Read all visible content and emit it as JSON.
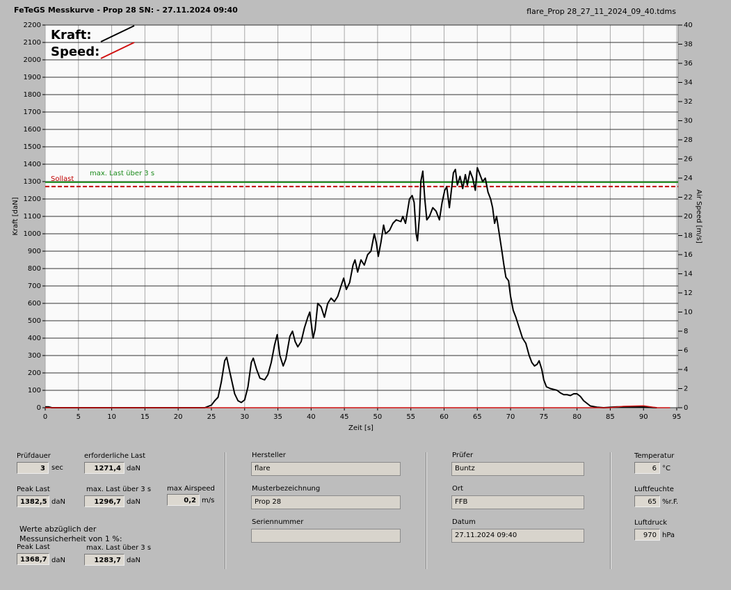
{
  "header": {
    "title": "FeTeGS Messkurve - Prop 28  SN:  - 27.11.2024 09:40",
    "file": "flare_Prop 28_27_11_2024_09_40.tdms"
  },
  "chart_data": {
    "type": "line",
    "x_label": "Zeit [s]",
    "y_label": "Kraft [daN]",
    "y2_label": "Air Speed [m/s]",
    "xlim": [
      0,
      95
    ],
    "xticks": [
      0,
      5,
      10,
      15,
      20,
      25,
      30,
      35,
      40,
      45,
      50,
      55,
      60,
      65,
      70,
      75,
      80,
      85,
      90,
      95
    ],
    "ylim": [
      0,
      2200
    ],
    "yticks": [
      0,
      100,
      200,
      300,
      400,
      500,
      600,
      700,
      800,
      900,
      1000,
      1100,
      1200,
      1300,
      1400,
      1500,
      1600,
      1700,
      1800,
      1900,
      2000,
      2100,
      2200
    ],
    "y2lim": [
      0,
      40
    ],
    "y2ticks": [
      0,
      2,
      4,
      6,
      8,
      10,
      12,
      14,
      16,
      18,
      20,
      22,
      24,
      26,
      28,
      30,
      32,
      34,
      36,
      38,
      40
    ],
    "grid": true,
    "series": [
      {
        "name": "Kraft:",
        "color": "#000000",
        "x": [
          0,
          0.5,
          1,
          24,
          25,
          25.5,
          26,
          26.5,
          27,
          27.3,
          27.8,
          28.5,
          29,
          29.5,
          30,
          30.5,
          31,
          31.3,
          31.8,
          32.3,
          33,
          33.5,
          34,
          34.5,
          34.9,
          35.3,
          35.8,
          36.2,
          36.8,
          37.2,
          37.6,
          38,
          38.5,
          39,
          39.5,
          39.8,
          40.3,
          40.6,
          41,
          41.5,
          42,
          42.5,
          43,
          43.5,
          44,
          44.5,
          44.9,
          45.3,
          45.8,
          46.3,
          46.6,
          47,
          47.5,
          48,
          48.5,
          49,
          49.5,
          49.8,
          50.1,
          50.5,
          50.9,
          51.2,
          51.8,
          52.3,
          52.8,
          53.5,
          53.8,
          54.2,
          54.8,
          55.2,
          55.5,
          55.8,
          56,
          56.3,
          56.5,
          56.8,
          57.1,
          57.4,
          57.8,
          58.3,
          58.8,
          59.3,
          59.7,
          60.1,
          60.4,
          60.8,
          61.1,
          61.4,
          61.7,
          62,
          62.4,
          62.8,
          63.2,
          63.5,
          63.9,
          64.3,
          64.7,
          65,
          65.4,
          65.8,
          66.2,
          66.6,
          67,
          67.3,
          67.6,
          67.9,
          68.3,
          68.7,
          69,
          69.3,
          69.7,
          70,
          70.4,
          70.8,
          71.3,
          71.8,
          72.3,
          72.8,
          73.2,
          73.6,
          74,
          74.3,
          74.7,
          75,
          75.4,
          76,
          76.5,
          77,
          77.5,
          78,
          78.5,
          79,
          79.5,
          80,
          80.5,
          81,
          81.5,
          82,
          83,
          84,
          86,
          90,
          92
        ],
        "values": [
          5,
          5,
          0,
          0,
          15,
          40,
          60,
          150,
          270,
          290,
          200,
          80,
          40,
          30,
          45,
          120,
          260,
          285,
          220,
          170,
          160,
          190,
          260,
          360,
          420,
          300,
          240,
          280,
          410,
          440,
          380,
          350,
          380,
          460,
          520,
          550,
          400,
          450,
          600,
          580,
          520,
          600,
          630,
          610,
          640,
          700,
          745,
          680,
          720,
          820,
          850,
          780,
          850,
          820,
          880,
          900,
          1000,
          950,
          870,
          950,
          1050,
          1000,
          1020,
          1060,
          1080,
          1070,
          1100,
          1060,
          1200,
          1220,
          1180,
          1000,
          960,
          1100,
          1300,
          1360,
          1200,
          1080,
          1100,
          1150,
          1130,
          1080,
          1180,
          1250,
          1270,
          1150,
          1250,
          1350,
          1370,
          1280,
          1330,
          1260,
          1340,
          1280,
          1360,
          1320,
          1250,
          1380,
          1340,
          1300,
          1320,
          1240,
          1200,
          1150,
          1060,
          1100,
          1000,
          900,
          820,
          750,
          730,
          640,
          560,
          520,
          460,
          400,
          370,
          300,
          260,
          240,
          250,
          270,
          220,
          160,
          120,
          110,
          105,
          100,
          85,
          75,
          75,
          70,
          80,
          80,
          65,
          40,
          25,
          10,
          3,
          0,
          5,
          4,
          0
        ]
      },
      {
        "name": "Speed:",
        "color": "#d01010",
        "axis": "y2",
        "x": [
          0,
          85,
          87,
          90,
          92,
          94
        ],
        "values": [
          0,
          0,
          0.15,
          0.2,
          0,
          0
        ]
      }
    ],
    "reference_lines": [
      {
        "label": "Sollast",
        "value": 1271.4,
        "color": "#c00000",
        "dashed": true
      },
      {
        "label": "max. Last über  3 s",
        "value": 1296.7,
        "color": "#1a8a1a",
        "dashed": false
      }
    ]
  },
  "results": {
    "pruefdauer": {
      "label": "Prüfdauer",
      "value": "3",
      "unit": "sec"
    },
    "erforderlich": {
      "label": "erforderliche Last",
      "value": "1271,4",
      "unit": "daN"
    },
    "peak": {
      "label": "Peak Last",
      "value": "1382,5",
      "unit": "daN"
    },
    "max3": {
      "label": "max. Last über  3 s",
      "value": "1296,7",
      "unit": "daN"
    },
    "airspeed": {
      "label": "max Airspeed",
      "value": "0,2",
      "unit": "m/s"
    },
    "note": [
      "Werte abzüglich der",
      "Messunsicherheit von 1  %:"
    ],
    "peak_corr": {
      "label": "Peak Last",
      "value": "1368,7",
      "unit": "daN"
    },
    "max3_corr": {
      "label": "max. Last über  3 s",
      "value": "1283,7",
      "unit": "daN"
    }
  },
  "info": {
    "hersteller": {
      "label": "Hersteller",
      "value": "flare"
    },
    "muster": {
      "label": "Musterbezeichnung",
      "value": "Prop 28"
    },
    "serie": {
      "label": "Seriennummer"
    },
    "pruefer": {
      "label": "Prüfer",
      "value": "Buntz"
    },
    "ort": {
      "label": "Ort",
      "value": "FFB"
    },
    "datum": {
      "label": "Datum",
      "value": "27.11.2024 09:40"
    }
  },
  "conditions": {
    "temp": {
      "label": "Temperatur",
      "value": "6",
      "unit": "°C"
    },
    "feuchte": {
      "label": "Luftfeuchte",
      "value": "65",
      "unit": "%r.F."
    },
    "druck": {
      "label": "Luftdruck",
      "value": "970",
      "unit": "hPa"
    }
  }
}
